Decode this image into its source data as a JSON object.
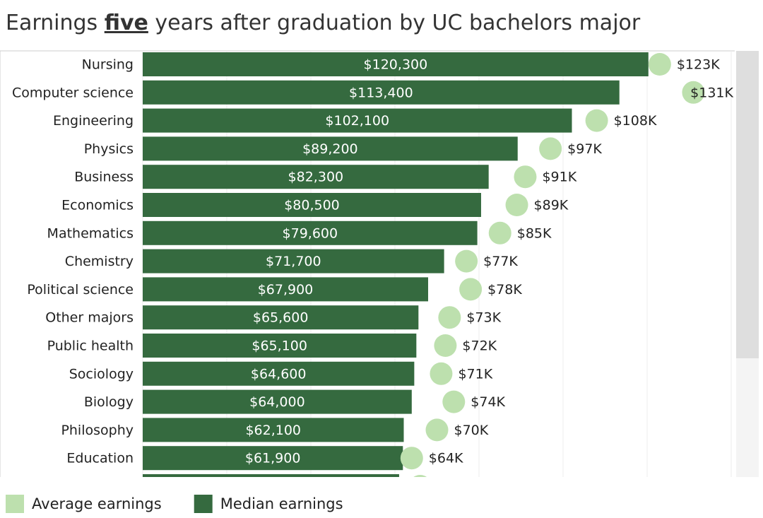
{
  "chart_data": {
    "type": "bar-dot",
    "title": [
      "Earnings",
      "five",
      "years after graduation by UC bachelors major"
    ],
    "categories": [
      "Nursing",
      "Computer science",
      "Engineering",
      "Physics",
      "Business",
      "Economics",
      "Mathematics",
      "Chemistry",
      "Political science",
      "Other majors",
      "Public health",
      "Sociology",
      "Biology",
      "Philosophy",
      "Education",
      null
    ],
    "series": [
      {
        "name": "Average earnings",
        "color": "#bde0ae",
        "mark": "dot",
        "values": [
          123000,
          131000,
          108000,
          97000,
          91000,
          89000,
          85000,
          77000,
          78000,
          73000,
          72000,
          71000,
          74000,
          70000,
          64000,
          66000
        ],
        "value_labels": [
          "$123K",
          "$131K",
          "$108K",
          "$97K",
          "$91K",
          "$89K",
          "$85K",
          "$77K",
          "$78K",
          "$73K",
          "$72K",
          "$71K",
          "$74K",
          "$70K",
          "$64K",
          null
        ]
      },
      {
        "name": "Median earnings",
        "color": "#356a3f",
        "mark": "bar",
        "values": [
          120300,
          113400,
          102100,
          89200,
          82300,
          80500,
          79600,
          71700,
          67900,
          65600,
          65100,
          64600,
          64000,
          62100,
          61900,
          61000
        ],
        "value_labels": [
          "$120,300",
          "$113,400",
          "$102,100",
          "$89,200",
          "$82,300",
          "$80,500",
          "$79,600",
          "$71,700",
          "$67,900",
          "$65,600",
          "$65,100",
          "$64,600",
          "$64,000",
          "$62,100",
          "$61,900",
          null
        ]
      }
    ],
    "xlim": [
      0,
      140000
    ],
    "xticks": [
      0,
      20000,
      40000,
      60000,
      80000,
      100000,
      120000,
      140000
    ],
    "grid": true
  }
}
